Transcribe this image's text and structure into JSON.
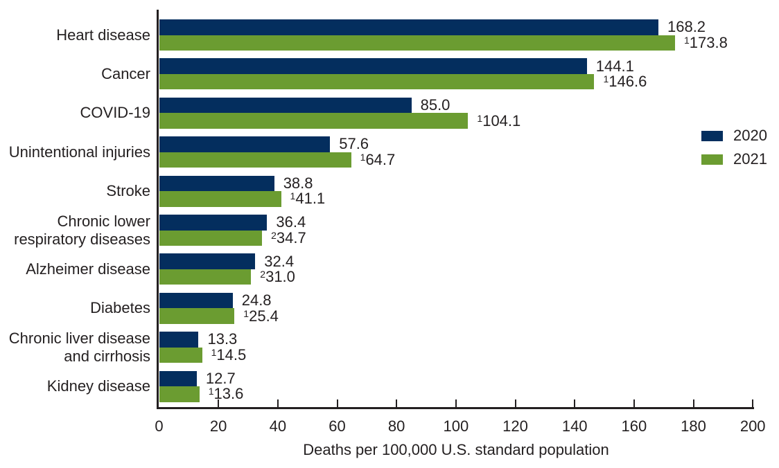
{
  "chart_data": {
    "type": "bar",
    "orientation": "horizontal",
    "title": "",
    "xlabel": "Deaths per 100,000 U.S. standard population",
    "xlim": [
      0,
      200
    ],
    "xticks": [
      0,
      20,
      40,
      60,
      80,
      100,
      120,
      140,
      160,
      180,
      200
    ],
    "grid": false,
    "legend_position": "right",
    "colors": {
      "series_2020": "#042e5e",
      "series_2021": "#6b9c31",
      "axis": "#231f20",
      "text": "#231f20"
    },
    "categories": [
      "Heart disease",
      "Cancer",
      "COVID-19",
      "Unintentional injuries",
      "Stroke",
      "Chronic lower respiratory diseases",
      "Alzheimer disease",
      "Diabetes",
      "Chronic liver disease and cirrhosis",
      "Kidney disease"
    ],
    "categories_lines": [
      [
        "Heart disease"
      ],
      [
        "Cancer"
      ],
      [
        "COVID-19"
      ],
      [
        "Unintentional injuries"
      ],
      [
        "Stroke"
      ],
      [
        "Chronic lower",
        "respiratory diseases"
      ],
      [
        "Alzheimer disease"
      ],
      [
        "Diabetes"
      ],
      [
        "Chronic liver disease",
        "and cirrhosis"
      ],
      [
        "Kidney disease"
      ]
    ],
    "series": [
      {
        "name": "2020",
        "color": "#042e5e",
        "values": [
          168.2,
          144.1,
          85.0,
          57.6,
          38.8,
          36.4,
          32.4,
          24.8,
          13.3,
          12.7
        ],
        "labels": [
          "168.2",
          "144.1",
          "85.0",
          "57.6",
          "38.8",
          "36.4",
          "32.4",
          "24.8",
          "13.3",
          "12.7"
        ],
        "label_superscripts": [
          "",
          "",
          "",
          "",
          "",
          "",
          "",
          "",
          "",
          ""
        ]
      },
      {
        "name": "2021",
        "color": "#6b9c31",
        "values": [
          173.8,
          146.6,
          104.1,
          64.7,
          41.1,
          34.7,
          31.0,
          25.4,
          14.5,
          13.6
        ],
        "labels": [
          "173.8",
          "146.6",
          "104.1",
          "64.7",
          "41.1",
          "34.7",
          "31.0",
          "25.4",
          "14.5",
          "13.6"
        ],
        "label_superscripts": [
          "1",
          "1",
          "1",
          "1",
          "1",
          "2",
          "2",
          "1",
          "1",
          "1"
        ]
      }
    ],
    "legend": [
      {
        "label": "2020",
        "color": "#042e5e"
      },
      {
        "label": "2021",
        "color": "#6b9c31"
      }
    ]
  }
}
